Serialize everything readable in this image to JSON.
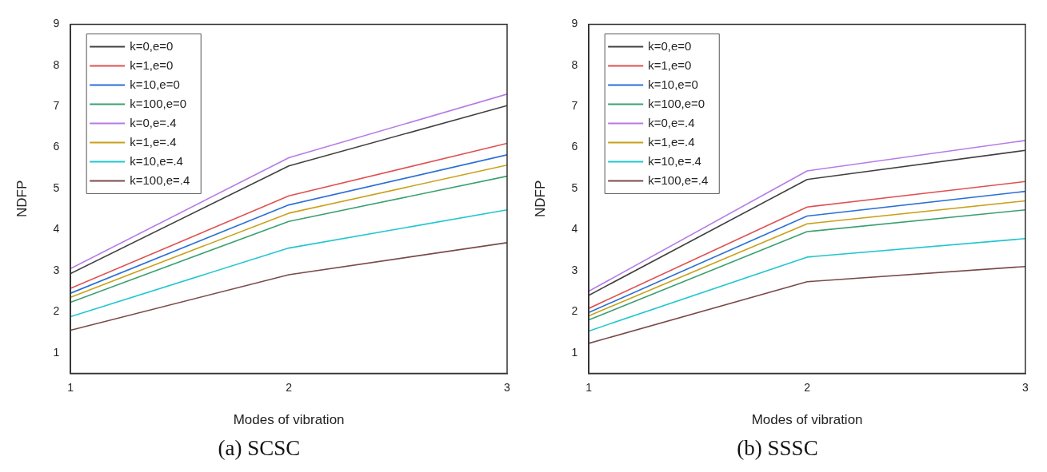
{
  "chart_data": [
    {
      "type": "line",
      "title": "(a) SCSC",
      "xlabel": "Modes of vibration",
      "ylabel": "NDFP",
      "x": [
        1,
        2,
        3
      ],
      "xlim": [
        1,
        3
      ],
      "xticks": [
        1,
        2,
        3
      ],
      "ylim": [
        0.5,
        9
      ],
      "yticks": [
        1,
        2,
        3,
        4,
        5,
        6,
        7,
        8,
        9
      ],
      "grid": false,
      "legend": "top left",
      "marker": "none",
      "line_style": "solid",
      "series": [
        {
          "name": "k=0,e=0",
          "color": "#404040",
          "values": [
            2.93,
            5.55,
            7.02
          ]
        },
        {
          "name": "k=1,e=0",
          "color": "#e05050",
          "values": [
            2.57,
            4.82,
            6.1
          ]
        },
        {
          "name": "k=10,e=0",
          "color": "#2a6fd6",
          "values": [
            2.45,
            4.6,
            5.82
          ]
        },
        {
          "name": "k=100,e=0",
          "color": "#3aa070",
          "values": [
            2.23,
            4.2,
            5.3
          ]
        },
        {
          "name": "k=0,e=.4",
          "color": "#b57be6",
          "values": [
            3.05,
            5.75,
            7.3
          ]
        },
        {
          "name": "k=1,e=.4",
          "color": "#c9a018",
          "values": [
            2.35,
            4.4,
            5.57
          ]
        },
        {
          "name": "k=10,e=.4",
          "color": "#20c6d0",
          "values": [
            1.88,
            3.55,
            4.48
          ]
        },
        {
          "name": "k=100,e=.4",
          "color": "#7a4a4a",
          "values": [
            1.55,
            2.9,
            3.68
          ]
        }
      ]
    },
    {
      "type": "line",
      "title": "(b) SSSC",
      "xlabel": "Modes of vibration",
      "ylabel": "NDFP",
      "x": [
        1,
        2,
        3
      ],
      "xlim": [
        1,
        3
      ],
      "xticks": [
        1,
        2,
        3
      ],
      "ylim": [
        0.5,
        9
      ],
      "yticks": [
        1,
        2,
        3,
        4,
        5,
        6,
        7,
        8,
        9
      ],
      "grid": false,
      "legend": "top left",
      "marker": "none",
      "line_style": "solid",
      "series": [
        {
          "name": "k=0,e=0",
          "color": "#404040",
          "values": [
            2.4,
            5.22,
            5.93
          ]
        },
        {
          "name": "k=1,e=0",
          "color": "#e05050",
          "values": [
            2.08,
            4.55,
            5.17
          ]
        },
        {
          "name": "k=10,e=0",
          "color": "#2a6fd6",
          "values": [
            1.98,
            4.33,
            4.93
          ]
        },
        {
          "name": "k=100,e=0",
          "color": "#3aa070",
          "values": [
            1.8,
            3.95,
            4.48
          ]
        },
        {
          "name": "k=0,e=.4",
          "color": "#b57be6",
          "values": [
            2.5,
            5.43,
            6.17
          ]
        },
        {
          "name": "k=1,e=.4",
          "color": "#c9a018",
          "values": [
            1.9,
            4.14,
            4.7
          ]
        },
        {
          "name": "k=10,e=.4",
          "color": "#20c6d0",
          "values": [
            1.53,
            3.33,
            3.78
          ]
        },
        {
          "name": "k=100,e=.4",
          "color": "#7a4a4a",
          "values": [
            1.23,
            2.73,
            3.1
          ]
        }
      ]
    }
  ]
}
